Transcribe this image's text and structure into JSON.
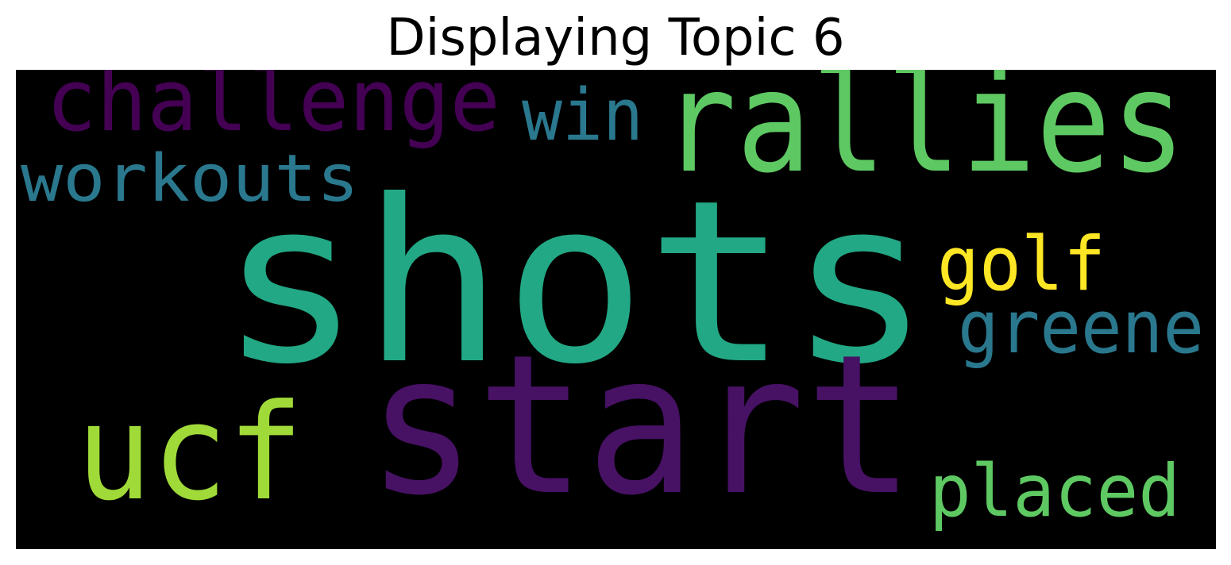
{
  "title": "Displaying Topic 6",
  "words": [
    {
      "text": "shots",
      "color": "#22a884"
    },
    {
      "text": "start",
      "color": "#471164"
    },
    {
      "text": "rallies",
      "color": "#5ec962"
    },
    {
      "text": "ucf",
      "color": "#a0da39"
    },
    {
      "text": "challenge",
      "color": "#440154"
    },
    {
      "text": "workouts",
      "color": "#2a788e"
    },
    {
      "text": "win",
      "color": "#2a788e"
    },
    {
      "text": "golf",
      "color": "#fde725"
    },
    {
      "text": "greene",
      "color": "#2a788e"
    },
    {
      "text": "placed",
      "color": "#5ec962"
    }
  ]
}
